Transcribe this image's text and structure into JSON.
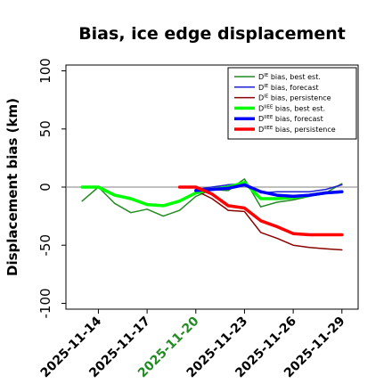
{
  "chart_data": {
    "type": "line",
    "title": "Bias, ice edge displacement",
    "xlabel": "",
    "ylabel": "Displacement bias (km)",
    "xlim": [
      "2025-11-12",
      "2025-11-30"
    ],
    "ylim": [
      -105,
      105
    ],
    "yticks": [
      100,
      50,
      0,
      -50,
      -100
    ],
    "xticks": [
      "2025-11-14",
      "2025-11-17",
      "2025-11-20",
      "2025-11-23",
      "2025-11-26",
      "2025-11-29"
    ],
    "highlight_xtick": "2025-11-20",
    "highlight_color": "#228B22",
    "reference_line": 0,
    "legend_position": "upper right",
    "series": [
      {
        "name": "D^IE bias, best est.",
        "label_main": "D",
        "label_sup": "IE",
        "label_rest": " bias, best est.",
        "color": "#228B22",
        "width": 1.5,
        "x": [
          "2025-11-13",
          "2025-11-14",
          "2025-11-15",
          "2025-11-16",
          "2025-11-17",
          "2025-11-18",
          "2025-11-19",
          "2025-11-20",
          "2025-11-21",
          "2025-11-22",
          "2025-11-23",
          "2025-11-24",
          "2025-11-25",
          "2025-11-26",
          "2025-11-27",
          "2025-11-28",
          "2025-11-29"
        ],
        "values": [
          -12,
          0,
          -14,
          -22,
          -19,
          -25,
          -20,
          -8,
          -2,
          -3,
          7,
          -17,
          -13,
          -11,
          -8,
          -5,
          3
        ]
      },
      {
        "name": "D^IE bias, forecast",
        "label_main": "D",
        "label_sup": "IE",
        "label_rest": " bias, forecast",
        "color": "#1f1fd6",
        "width": 1.5,
        "x": [
          "2025-11-20",
          "2025-11-21",
          "2025-11-22",
          "2025-11-23",
          "2025-11-24",
          "2025-11-25",
          "2025-11-26",
          "2025-11-27",
          "2025-11-28",
          "2025-11-29"
        ],
        "values": [
          -2,
          0,
          2,
          3,
          -5,
          -4,
          -4,
          -4,
          -2,
          2
        ]
      },
      {
        "name": "D^IE bias, persistence",
        "label_main": "D",
        "label_sup": "IE",
        "label_rest": " bias, persistence",
        "color": "#8b0000",
        "width": 1.5,
        "x": [
          "2025-11-20",
          "2025-11-21",
          "2025-11-22",
          "2025-11-23",
          "2025-11-24",
          "2025-11-25",
          "2025-11-26",
          "2025-11-27",
          "2025-11-28",
          "2025-11-29"
        ],
        "values": [
          -3,
          -10,
          -20,
          -21,
          -39,
          -44,
          -50,
          -52,
          -53,
          -54
        ]
      },
      {
        "name": "D^IIEE bias, best est.",
        "label_main": "D",
        "label_sup": "IIEE",
        "label_rest": " bias, best est.",
        "color": "#00ff00",
        "width": 3.5,
        "x": [
          "2025-11-13",
          "2025-11-14",
          "2025-11-15",
          "2025-11-16",
          "2025-11-17",
          "2025-11-18",
          "2025-11-19",
          "2025-11-20",
          "2025-11-21",
          "2025-11-22",
          "2025-11-23",
          "2025-11-24",
          "2025-11-25",
          "2025-11-26",
          "2025-11-27",
          "2025-11-28",
          "2025-11-29"
        ],
        "values": [
          0,
          0,
          -7,
          -10,
          -15,
          -16,
          -12,
          -5,
          -2,
          0,
          4,
          -10,
          -10,
          -9,
          -7,
          -5,
          -4
        ]
      },
      {
        "name": "D^IIEE bias, forecast",
        "label_main": "D",
        "label_sup": "IIEE",
        "label_rest": " bias, forecast",
        "color": "#0000ff",
        "width": 3.5,
        "x": [
          "2025-11-20",
          "2025-11-21",
          "2025-11-22",
          "2025-11-23",
          "2025-11-24",
          "2025-11-25",
          "2025-11-26",
          "2025-11-27",
          "2025-11-28",
          "2025-11-29"
        ],
        "values": [
          -3,
          -2,
          -1,
          2,
          -4,
          -7,
          -8,
          -7,
          -5,
          -4
        ]
      },
      {
        "name": "D^IIEE bias, persistence",
        "label_main": "D",
        "label_sup": "IIEE",
        "label_rest": " bias, persistence",
        "color": "#ff0000",
        "width": 3.5,
        "x": [
          "2025-11-19",
          "2025-11-20",
          "2025-11-21",
          "2025-11-22",
          "2025-11-23",
          "2025-11-24",
          "2025-11-25",
          "2025-11-26",
          "2025-11-27",
          "2025-11-28",
          "2025-11-29"
        ],
        "values": [
          0,
          0,
          -6,
          -16,
          -18,
          -29,
          -34,
          -40,
          -41,
          -41,
          -41
        ]
      }
    ]
  }
}
